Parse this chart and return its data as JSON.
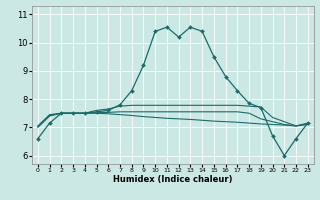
{
  "title": "",
  "xlabel": "Humidex (Indice chaleur)",
  "bg_color": "#cce8e4",
  "grid_color": "#ffffff",
  "line_color": "#1a6b6b",
  "xlim": [
    -0.5,
    23.5
  ],
  "ylim": [
    5.7,
    11.3
  ],
  "yticks": [
    6,
    7,
    8,
    9,
    10,
    11
  ],
  "xticks": [
    0,
    1,
    2,
    3,
    4,
    5,
    6,
    7,
    8,
    9,
    10,
    11,
    12,
    13,
    14,
    15,
    16,
    17,
    18,
    19,
    20,
    21,
    22,
    23
  ],
  "lines": [
    {
      "x": [
        0,
        1,
        2,
        3,
        4,
        5,
        6,
        7,
        8,
        9,
        10,
        11,
        12,
        13,
        14,
        15,
        16,
        17,
        18,
        19,
        20,
        21,
        22,
        23
      ],
      "y": [
        6.6,
        7.15,
        7.5,
        7.5,
        7.5,
        7.55,
        7.6,
        7.8,
        8.3,
        9.2,
        10.4,
        10.55,
        10.2,
        10.55,
        10.4,
        9.5,
        8.8,
        8.3,
        7.85,
        7.7,
        6.7,
        6.0,
        6.6,
        7.15
      ],
      "marker": "D",
      "markersize": 2.0,
      "linewidth": 0.9
    },
    {
      "x": [
        0,
        1,
        2,
        3,
        4,
        5,
        6,
        7,
        8,
        9,
        10,
        11,
        12,
        13,
        14,
        15,
        16,
        17,
        18,
        19,
        20,
        21,
        22,
        23
      ],
      "y": [
        7.0,
        7.4,
        7.5,
        7.5,
        7.5,
        7.5,
        7.48,
        7.45,
        7.42,
        7.38,
        7.35,
        7.32,
        7.3,
        7.28,
        7.25,
        7.22,
        7.2,
        7.18,
        7.15,
        7.12,
        7.1,
        7.08,
        7.05,
        7.1
      ],
      "marker": null,
      "markersize": 0,
      "linewidth": 0.8
    },
    {
      "x": [
        0,
        1,
        2,
        3,
        4,
        5,
        6,
        7,
        8,
        9,
        10,
        11,
        12,
        13,
        14,
        15,
        16,
        17,
        18,
        19,
        20,
        21,
        22,
        23
      ],
      "y": [
        7.05,
        7.45,
        7.5,
        7.5,
        7.5,
        7.6,
        7.65,
        7.75,
        7.78,
        7.78,
        7.78,
        7.78,
        7.78,
        7.78,
        7.78,
        7.78,
        7.78,
        7.78,
        7.75,
        7.72,
        7.35,
        7.2,
        7.05,
        7.15
      ],
      "marker": null,
      "markersize": 0,
      "linewidth": 0.8
    },
    {
      "x": [
        0,
        1,
        2,
        3,
        4,
        5,
        6,
        7,
        8,
        9,
        10,
        11,
        12,
        13,
        14,
        15,
        16,
        17,
        18,
        19,
        20,
        21,
        22,
        23
      ],
      "y": [
        7.02,
        7.42,
        7.5,
        7.5,
        7.5,
        7.52,
        7.53,
        7.55,
        7.55,
        7.55,
        7.55,
        7.55,
        7.55,
        7.55,
        7.55,
        7.55,
        7.55,
        7.55,
        7.5,
        7.3,
        7.2,
        7.1,
        7.05,
        7.12
      ],
      "marker": null,
      "markersize": 0,
      "linewidth": 0.8
    }
  ]
}
